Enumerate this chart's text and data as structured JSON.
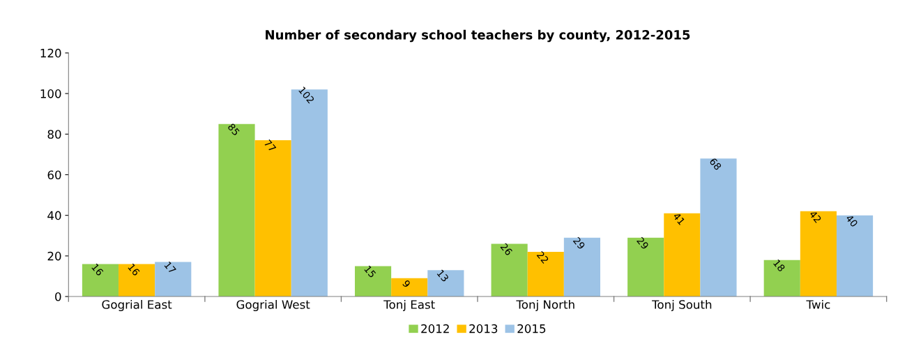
{
  "chart_data": {
    "type": "bar",
    "title": "Number of secondary school teachers by county, 2012-2015",
    "categories": [
      "Gogrial East",
      "Gogrial West",
      "Tonj East",
      "Tonj North",
      "Tonj South",
      "Twic"
    ],
    "series": [
      {
        "name": "2012",
        "color": "#92d050",
        "values": [
          16,
          85,
          15,
          26,
          29,
          18
        ]
      },
      {
        "name": "2013",
        "color": "#ffc000",
        "values": [
          16,
          77,
          9,
          22,
          41,
          42
        ]
      },
      {
        "name": "2015",
        "color": "#9dc3e6",
        "values": [
          17,
          102,
          13,
          29,
          68,
          40
        ]
      }
    ],
    "ylim": [
      0,
      120
    ],
    "yticks": [
      0,
      20,
      40,
      60,
      80,
      100,
      120
    ],
    "grid": false,
    "legend": "bottom",
    "data_labels": true
  }
}
